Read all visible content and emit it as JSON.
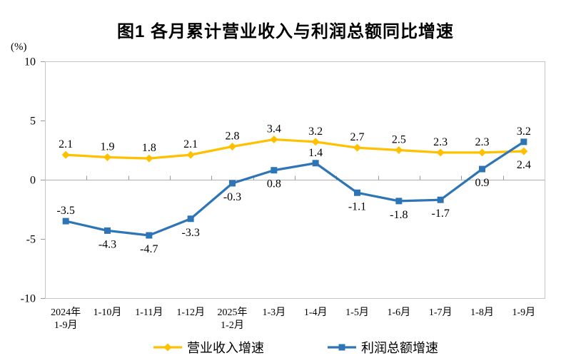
{
  "title": "图1  各月累计营业收入与利润总额同比增速",
  "unit_label": "(%)",
  "chart_data": {
    "type": "line",
    "categories": [
      [
        "2024年",
        "1-9月"
      ],
      [
        "1-10月"
      ],
      [
        "1-11月"
      ],
      [
        "1-12月"
      ],
      [
        "2025年",
        "1-2月"
      ],
      [
        "1-3月"
      ],
      [
        "1-4月"
      ],
      [
        "1-5月"
      ],
      [
        "1-6月"
      ],
      [
        "1-7月"
      ],
      [
        "1-8月"
      ],
      [
        "1-9月"
      ]
    ],
    "series": [
      {
        "name": "营业收入增速",
        "color": "#FFC000",
        "marker": "diamond",
        "values": [
          2.1,
          1.9,
          1.8,
          2.1,
          2.8,
          3.4,
          3.2,
          2.7,
          2.5,
          2.3,
          2.3,
          2.4
        ],
        "label_positions": [
          "above",
          "above",
          "above",
          "above",
          "above",
          "above",
          "above",
          "above",
          "above",
          "above",
          "above",
          "below"
        ]
      },
      {
        "name": "利润总额增速",
        "color": "#2E75B6",
        "marker": "square",
        "values": [
          -3.5,
          -4.3,
          -4.7,
          -3.3,
          -0.3,
          0.8,
          1.4,
          -1.1,
          -1.8,
          -1.7,
          0.9,
          3.2
        ],
        "label_positions": [
          "above",
          "below",
          "below",
          "below",
          "below",
          "below",
          "above",
          "below",
          "below",
          "below",
          "below",
          "above"
        ]
      }
    ],
    "ylim": [
      -10,
      10
    ],
    "yticks": [
      10,
      5,
      0,
      -5,
      -10
    ],
    "grid": false,
    "legend_position": "bottom",
    "value_label_decimals": 1
  },
  "colors": {
    "frame": "#c6c6c6",
    "zero_line": "#b0b0b0",
    "tick": "#9a9a9a",
    "text": "#000000",
    "background": "#ffffff"
  }
}
